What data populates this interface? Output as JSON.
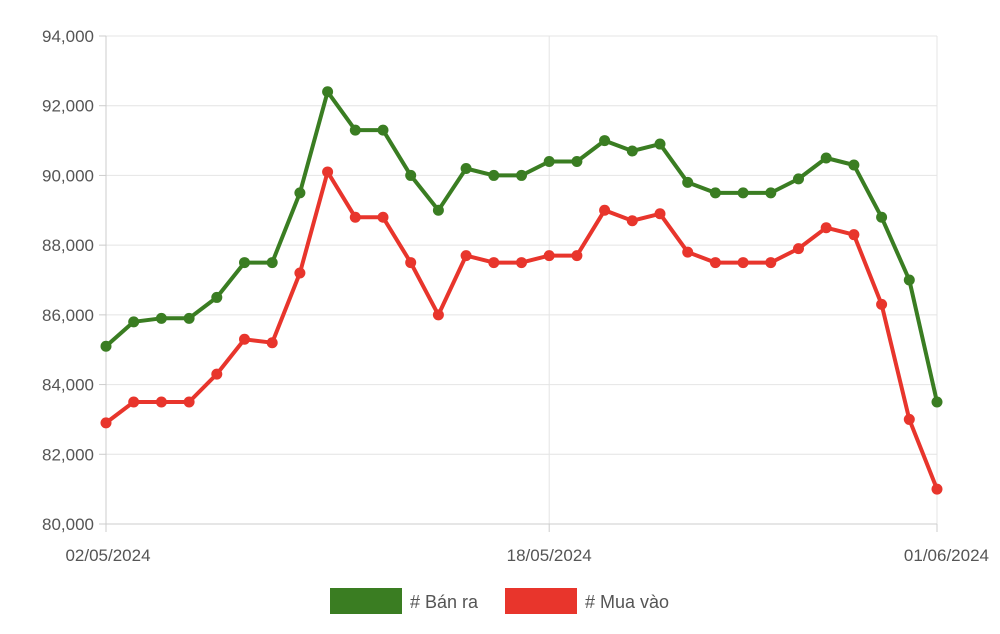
{
  "chart_data": {
    "type": "line",
    "title": "",
    "xlabel": "",
    "ylabel": "",
    "x": [
      "02/05/2024",
      "03/05/2024",
      "04/05/2024",
      "05/05/2024",
      "06/05/2024",
      "07/05/2024",
      "08/05/2024",
      "09/05/2024",
      "10/05/2024",
      "11/05/2024",
      "12/05/2024",
      "13/05/2024",
      "14/05/2024",
      "15/05/2024",
      "16/05/2024",
      "17/05/2024",
      "18/05/2024",
      "19/05/2024",
      "20/05/2024",
      "21/05/2024",
      "22/05/2024",
      "23/05/2024",
      "24/05/2024",
      "25/05/2024",
      "26/05/2024",
      "27/05/2024",
      "28/05/2024",
      "29/05/2024",
      "30/05/2024",
      "31/05/2024",
      "01/06/2024"
    ],
    "x_tick_labels": [
      "02/05/2024",
      "18/05/2024",
      "01/06/2024"
    ],
    "x_tick_indices": [
      0,
      16,
      30
    ],
    "y_ticks": [
      80000,
      82000,
      84000,
      86000,
      88000,
      90000,
      92000,
      94000
    ],
    "y_tick_labels": [
      "80,000",
      "82,000",
      "84,000",
      "86,000",
      "88,000",
      "90,000",
      "92,000",
      "94,000"
    ],
    "ylim": [
      80000,
      94000
    ],
    "grid": true,
    "legend_position": "bottom-center",
    "series": [
      {
        "name": "# Bán ra",
        "color": "#3a7d22",
        "values": [
          85100,
          85800,
          85900,
          85900,
          86500,
          87500,
          87500,
          89500,
          92400,
          91300,
          91300,
          90000,
          89000,
          90200,
          90000,
          90000,
          90400,
          90400,
          91000,
          90700,
          90900,
          89800,
          89500,
          89500,
          89500,
          89900,
          90500,
          90300,
          88800,
          87000,
          83500
        ]
      },
      {
        "name": "# Mua vào",
        "color": "#e8352c",
        "values": [
          82900,
          83500,
          83500,
          83500,
          84300,
          85300,
          85200,
          87200,
          90100,
          88800,
          88800,
          87500,
          86000,
          87700,
          87500,
          87500,
          87700,
          87700,
          89000,
          88700,
          88900,
          87800,
          87500,
          87500,
          87500,
          87900,
          88500,
          88300,
          86300,
          83000,
          81000
        ]
      }
    ]
  }
}
